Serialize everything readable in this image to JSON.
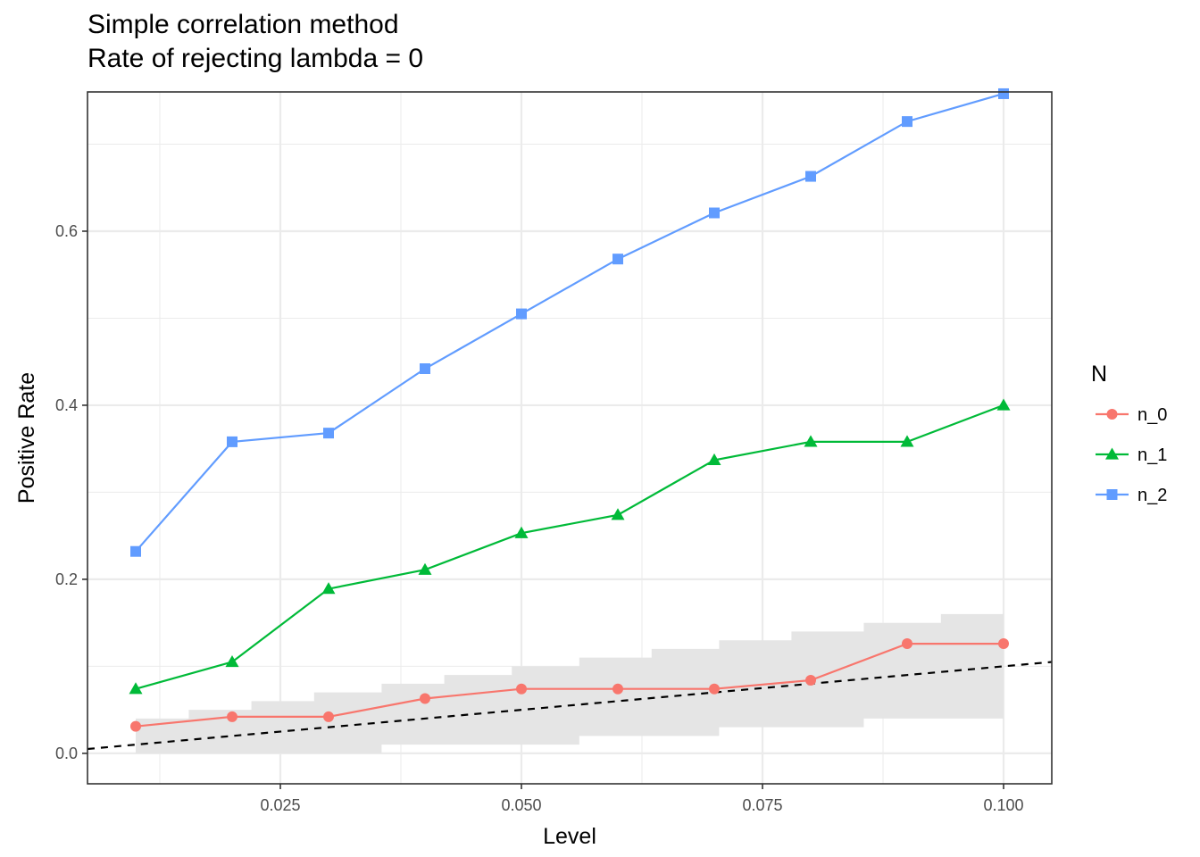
{
  "chart_data": {
    "type": "line",
    "title": "Simple correlation method",
    "subtitle": "Rate of rejecting lambda = 0",
    "xlabel": "Level",
    "ylabel": "Positive Rate",
    "xlim": [
      0.005,
      0.105
    ],
    "ylim": [
      -0.035,
      0.76
    ],
    "x_ticks": [
      0.025,
      0.05,
      0.075,
      0.1
    ],
    "x_tick_labels": [
      "0.025",
      "0.050",
      "0.075",
      "0.100"
    ],
    "y_ticks": [
      0.0,
      0.2,
      0.4,
      0.6
    ],
    "y_tick_labels": [
      "0.0",
      "0.2",
      "0.4",
      "0.6"
    ],
    "grid": true,
    "legend": {
      "title": "N",
      "position": "right"
    },
    "x": [
      0.01,
      0.02,
      0.03,
      0.04,
      0.05,
      0.06,
      0.07,
      0.08,
      0.09,
      0.1
    ],
    "series": [
      {
        "name": "n_0",
        "color": "#F8766D",
        "marker": "circle",
        "values": [
          0.031,
          0.042,
          0.042,
          0.063,
          0.074,
          0.074,
          0.074,
          0.084,
          0.126,
          0.126
        ]
      },
      {
        "name": "n_1",
        "color": "#00BA38",
        "marker": "triangle",
        "values": [
          0.074,
          0.105,
          0.189,
          0.211,
          0.253,
          0.274,
          0.337,
          0.358,
          0.358,
          0.4
        ]
      },
      {
        "name": "n_2",
        "color": "#619CFF",
        "marker": "square",
        "values": [
          0.232,
          0.358,
          0.368,
          0.442,
          0.505,
          0.568,
          0.621,
          0.663,
          0.726,
          0.758
        ]
      }
    ],
    "reference_line": {
      "slope": 1,
      "intercept": 0,
      "style": "dashed",
      "color": "#000000"
    },
    "confidence_band": {
      "color": "#e5e5e5",
      "steps": [
        {
          "x0": 0.01,
          "x1": 0.0155,
          "lo": 0.0,
          "hi": 0.04
        },
        {
          "x0": 0.0155,
          "x1": 0.022,
          "lo": 0.0,
          "hi": 0.05
        },
        {
          "x0": 0.022,
          "x1": 0.0285,
          "lo": 0.0,
          "hi": 0.06
        },
        {
          "x0": 0.0285,
          "x1": 0.0355,
          "lo": 0.0,
          "hi": 0.07
        },
        {
          "x0": 0.0355,
          "x1": 0.042,
          "lo": 0.01,
          "hi": 0.08
        },
        {
          "x0": 0.042,
          "x1": 0.049,
          "lo": 0.01,
          "hi": 0.09
        },
        {
          "x0": 0.049,
          "x1": 0.056,
          "lo": 0.01,
          "hi": 0.1
        },
        {
          "x0": 0.056,
          "x1": 0.0635,
          "lo": 0.02,
          "hi": 0.11
        },
        {
          "x0": 0.0635,
          "x1": 0.0705,
          "lo": 0.02,
          "hi": 0.12
        },
        {
          "x0": 0.0705,
          "x1": 0.078,
          "lo": 0.03,
          "hi": 0.13
        },
        {
          "x0": 0.078,
          "x1": 0.0855,
          "lo": 0.03,
          "hi": 0.14
        },
        {
          "x0": 0.0855,
          "x1": 0.0935,
          "lo": 0.04,
          "hi": 0.15
        },
        {
          "x0": 0.0935,
          "x1": 0.1,
          "lo": 0.04,
          "hi": 0.16
        }
      ]
    }
  }
}
